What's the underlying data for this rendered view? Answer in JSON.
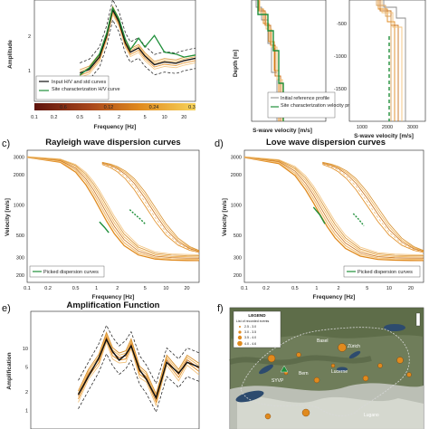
{
  "panel_labels": {
    "c": "c)",
    "d": "d)",
    "e": "e)",
    "f": "f)"
  },
  "colors": {
    "orange": "#e08a1e",
    "light_orange": "#f3c27a",
    "green": "#1f8f3a",
    "dark_red": "#6b1a10",
    "black": "#111111",
    "map_bg": "#6f7d5a",
    "lake": "#2d4b6e"
  },
  "colorbar": {
    "ticks_top": [
      "0.6",
      "0.12",
      "0.24",
      "0.3"
    ],
    "ticks_bottom": [
      "0.1",
      "0.2",
      "0.5",
      "1",
      "2",
      "5",
      "10",
      "20"
    ],
    "xlabel": "Frequency [Hz]"
  },
  "map": {
    "legend_title": "LEGEND",
    "legend_subtitle": "List of recorded events",
    "cities": [
      "Basel",
      "Zürich",
      "Bern",
      "Lucerne",
      "SYVP",
      "Lugano"
    ],
    "magnitude_classes": [
      "2.5 - 3.0",
      "3.0 - 3.5",
      "3.5 - 4.0",
      "4.0 - 4.6"
    ]
  },
  "chart_data": [
    {
      "id": "a",
      "type": "line",
      "title": "",
      "xlabel": "Frequency [Hz]",
      "ylabel": "Amplitude",
      "xscale": "log",
      "xlim": [
        0.1,
        30
      ],
      "ylim": [
        0.5,
        20
      ],
      "yticks": [
        "2",
        "1"
      ],
      "legend": [
        "Input H/V and std curves",
        "Site characterization H/V curve"
      ],
      "legend_placement": "lower-left",
      "series": [
        {
          "name": "Input H/V and std curves",
          "x": [
            0.5,
            0.7,
            1.0,
            1.3,
            1.6,
            2.0,
            2.5,
            3,
            4,
            5,
            7,
            10,
            15,
            20,
            30
          ],
          "y": [
            1.4,
            1.6,
            2.5,
            5.5,
            14,
            9,
            4.2,
            3.0,
            3.5,
            2.6,
            1.9,
            2.1,
            2.0,
            2.2,
            2.4
          ]
        },
        {
          "name": "Site characterization H/V curve",
          "x": [
            0.5,
            0.7,
            1.0,
            1.3,
            1.6,
            2.0,
            2.5,
            3,
            4,
            5,
            7,
            10,
            15,
            20,
            30
          ],
          "y": [
            1.3,
            1.7,
            2.8,
            6,
            15,
            10,
            4.8,
            3.3,
            5.0,
            3.6,
            5.5,
            3.0,
            2.8,
            2.5,
            2.7
          ]
        }
      ]
    },
    {
      "id": "b1",
      "type": "line",
      "xlabel": "S-wave velocity [m/s]",
      "ylabel": "Depth [m]",
      "xlim": [
        0,
        3500
      ],
      "ylim": [
        0,
        600
      ],
      "legend": [
        "Initial reference profile",
        "Site characterization velocity profiles"
      ],
      "legend_placement": "lower-right"
    },
    {
      "id": "b2",
      "type": "line",
      "xlabel": "S-wave velocity [m/s]",
      "xticks": [
        "1000",
        "2000",
        "3000"
      ],
      "yticks": [
        "-500",
        "-1000",
        "-1500"
      ],
      "ylim": [
        -1800,
        0
      ],
      "xlim": [
        0,
        3500
      ]
    },
    {
      "id": "c",
      "type": "line",
      "title": "Rayleigh wave dispersion curves",
      "xlabel": "Frequency [Hz]",
      "ylabel": "Velocity [m/s]",
      "xscale": "log",
      "yscale": "log",
      "xlim": [
        0.1,
        30
      ],
      "ylim": [
        170,
        3500
      ],
      "xticks": [
        "0.1",
        "0.2",
        "0.5",
        "1",
        "2",
        "5",
        "10",
        "20"
      ],
      "yticks": [
        "3000",
        "2000",
        "1000",
        "500",
        "300",
        "200"
      ],
      "legend": [
        "Picked dispersion curves"
      ],
      "legend_placement": "lower-left",
      "series": [
        {
          "name": "Picked dispersion curves",
          "x": [
            1.1,
            1.3,
            1.5
          ],
          "y": [
            680,
            600,
            530
          ]
        },
        {
          "name": "Picked dispersion curves",
          "x": [
            3.0,
            3.6,
            4.3,
            5.0
          ],
          "y": [
            900,
            800,
            720,
            650
          ]
        }
      ]
    },
    {
      "id": "d",
      "type": "line",
      "title": "Love wave dispersion curves",
      "xlabel": "Frequency [Hz]",
      "ylabel": "Velocity [m/s]",
      "xscale": "log",
      "yscale": "log",
      "xlim": [
        0.1,
        30
      ],
      "ylim": [
        170,
        3500
      ],
      "xticks": [
        "0.1",
        "0.2",
        "0.5",
        "1",
        "2",
        "5",
        "10",
        "20"
      ],
      "yticks": [
        "3000",
        "2000",
        "1000",
        "500",
        "300",
        "200"
      ],
      "legend": [
        "Picked dispersion curves"
      ],
      "legend_placement": "lower-right",
      "series": [
        {
          "name": "Picked dispersion curves",
          "x": [
            0.9,
            1.1,
            1.3
          ],
          "y": [
            950,
            800,
            650
          ]
        },
        {
          "name": "Picked dispersion curves",
          "x": [
            3.2,
            3.8,
            4.5
          ],
          "y": [
            820,
            720,
            620
          ]
        }
      ]
    },
    {
      "id": "e",
      "type": "line",
      "title": "Amplification Function",
      "ylabel": "Amplification",
      "xscale": "log",
      "xlim": [
        0.1,
        30
      ],
      "ylim": [
        0.5,
        40
      ],
      "yticks": [
        "10",
        "5",
        "2",
        "1"
      ],
      "series": [
        {
          "name": "",
          "x": [
            0.5,
            0.7,
            1.0,
            1.3,
            1.6,
            2.0,
            2.5,
            3,
            4,
            5,
            7,
            10,
            15,
            20,
            30
          ],
          "y": [
            1.8,
            3.5,
            7,
            14,
            9,
            6.5,
            8,
            11,
            4.5,
            3.2,
            1.6,
            6,
            4,
            6,
            5
          ]
        }
      ]
    }
  ]
}
